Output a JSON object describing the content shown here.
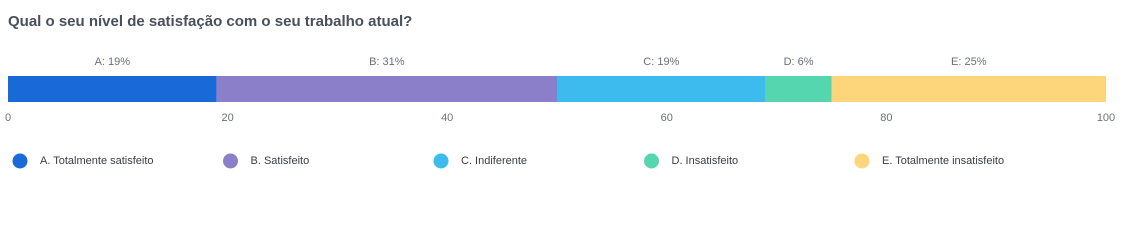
{
  "chart_data": {
    "type": "stacked_bar",
    "title": "Qual o seu nível de satisfação com o seu trabalho atual?",
    "series": [
      {
        "name": "A. Totalmente satisfeito",
        "color": "#1a69d9",
        "values": [
          19
        ],
        "value_labels": [
          "A: 19%"
        ]
      },
      {
        "name": "B. Satisfeito",
        "color": "#8a7fc8",
        "values": [
          31
        ],
        "value_labels": [
          "B: 31%"
        ]
      },
      {
        "name": "C. Indiferente",
        "color": "#3dbbef",
        "values": [
          19
        ],
        "value_labels": [
          "C: 19%"
        ]
      },
      {
        "name": "D. Insatisfeito",
        "color": "#55d6ae",
        "values": [
          6
        ],
        "value_labels": [
          "D: 6%"
        ]
      },
      {
        "name": "E. Totalmente insatisfeito",
        "color": "#fdd57a",
        "values": [
          25
        ],
        "value_labels": [
          "E: 25%"
        ]
      }
    ],
    "xlim": [
      0,
      100
    ],
    "xticks": [
      0,
      20,
      40,
      60,
      80,
      100
    ]
  }
}
